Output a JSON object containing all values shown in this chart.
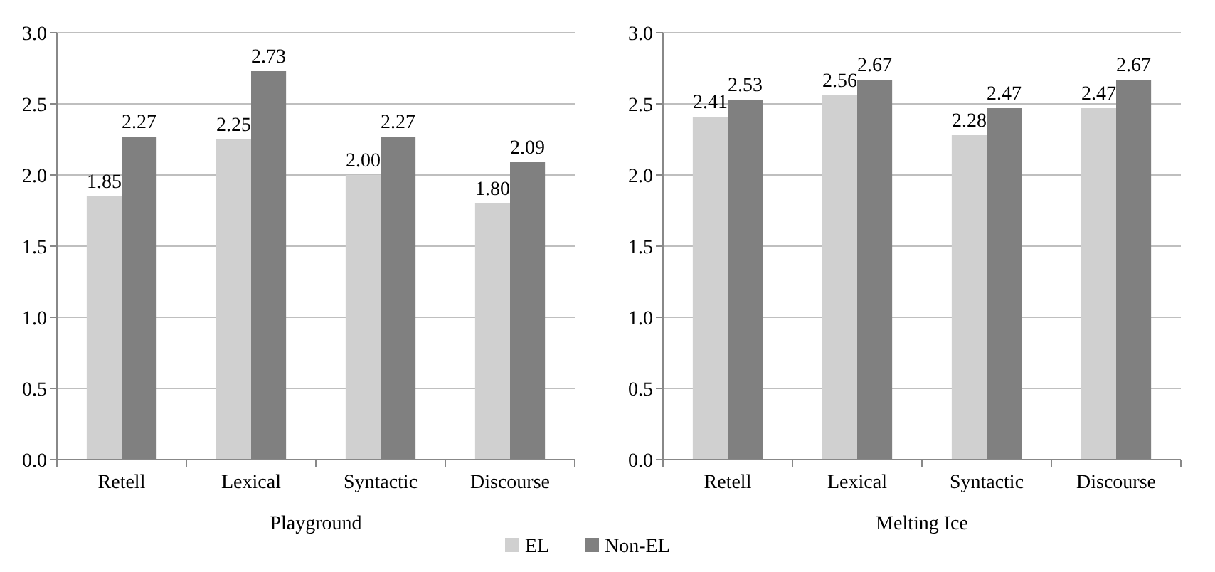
{
  "chart_data": [
    {
      "type": "bar",
      "xlabel": "Playground",
      "categories": [
        "Retell",
        "Lexical",
        "Syntactic",
        "Discourse"
      ],
      "series": [
        {
          "name": "EL",
          "color": "#d0d0d0",
          "values": [
            1.85,
            2.25,
            2.0,
            1.8
          ],
          "value_labels": [
            "1.85",
            "2.25",
            "2.00",
            "1.80"
          ]
        },
        {
          "name": "Non-EL",
          "color": "#808080",
          "values": [
            2.27,
            2.73,
            2.27,
            2.09
          ],
          "value_labels": [
            "2.27",
            "2.73",
            "2.27",
            "2.09"
          ]
        }
      ],
      "ylim": [
        0,
        3
      ],
      "yticks": [
        {
          "value": 0,
          "label": "0.0"
        },
        {
          "value": 0.5,
          "label": "0.5"
        },
        {
          "value": 1,
          "label": "1.0"
        },
        {
          "value": 1.5,
          "label": "1.5"
        },
        {
          "value": 2,
          "label": "2.0"
        },
        {
          "value": 2.5,
          "label": "2.5"
        },
        {
          "value": 3,
          "label": "3.0"
        }
      ],
      "grid": "y",
      "legend": "bottom"
    },
    {
      "type": "bar",
      "xlabel": "Melting Ice",
      "categories": [
        "Retell",
        "Lexical",
        "Syntactic",
        "Discourse"
      ],
      "series": [
        {
          "name": "EL",
          "color": "#d0d0d0",
          "values": [
            2.41,
            2.56,
            2.28,
            2.47
          ],
          "value_labels": [
            "2.41",
            "2.56",
            "2.28",
            "2.47"
          ]
        },
        {
          "name": "Non-EL",
          "color": "#808080",
          "values": [
            2.53,
            2.67,
            2.47,
            2.67
          ],
          "value_labels": [
            "2.53",
            "2.67",
            "2.47",
            "2.67"
          ]
        }
      ],
      "ylim": [
        0,
        3
      ],
      "yticks": [
        {
          "value": 0,
          "label": "0.0"
        },
        {
          "value": 0.5,
          "label": "0.5"
        },
        {
          "value": 1,
          "label": "1.0"
        },
        {
          "value": 1.5,
          "label": "1.5"
        },
        {
          "value": 2,
          "label": "2.0"
        },
        {
          "value": 2.5,
          "label": "2.5"
        },
        {
          "value": 3,
          "label": "3.0"
        }
      ],
      "grid": "y"
    }
  ]
}
